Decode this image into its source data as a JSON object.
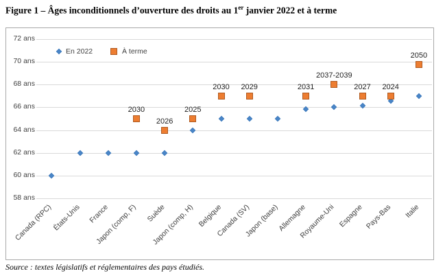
{
  "title": {
    "part1": "Figure 1 – Âges inconditionnels d’ouverture des droits au 1",
    "sup": "er",
    "part2": " janvier 2022 et à terme"
  },
  "source": "Source : textes législatifs et réglementaires des pays étudiés.",
  "colors": {
    "blue_fill": "#4a86c8",
    "blue_border": "#3d79bb",
    "orange_fill": "#ed7d31",
    "orange_border": "#ae5a21",
    "gridline": "#d9d9d9",
    "axis_text": "#404040",
    "box_border": "#a9a9a9"
  },
  "chart_data": {
    "type": "scatter",
    "title": "",
    "xlabel": "",
    "ylabel": "",
    "grid": "horizontal",
    "legend_position": "top-left-inside",
    "yticks": [
      58,
      60,
      62,
      64,
      66,
      68,
      70,
      72
    ],
    "ytick_suffix": " ans",
    "ylim": [
      57.6,
      72.9
    ],
    "categories": [
      "Canada (RPC)",
      "États-Unis",
      "France",
      "Japon (comp, F)",
      "Suède",
      "Japon (comp, H)",
      "Belgique",
      "Canada (SV)",
      "Japon (base)",
      "Allemagne",
      "Royaume-Uni",
      "Espagne",
      "Pays-Bas",
      "Italie"
    ],
    "series": [
      {
        "name": "En 2022",
        "marker": "diamond",
        "values": [
          60,
          62,
          62,
          62,
          62,
          64,
          65,
          65,
          65,
          65.83,
          66,
          66.17,
          66.58,
          67
        ]
      },
      {
        "name": "À terme",
        "marker": "square",
        "values": [
          null,
          null,
          null,
          65,
          64,
          65,
          67,
          67,
          null,
          67,
          68,
          67,
          67,
          69.75
        ],
        "labels": [
          null,
          null,
          null,
          "2030",
          "2026",
          "2025",
          "2030",
          "2029",
          null,
          "2031",
          "2037-2039",
          "2027",
          "2024",
          "2050"
        ]
      }
    ]
  }
}
